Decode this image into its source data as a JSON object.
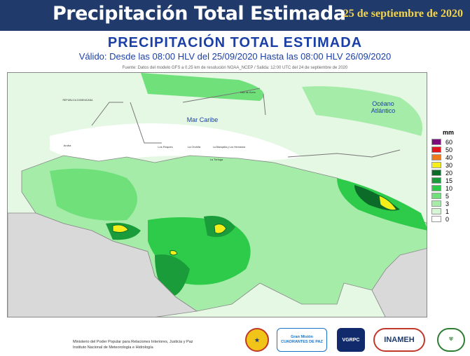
{
  "header": {
    "title": "Precipitación Total Estimada",
    "date": "25 de septiembre de 2020"
  },
  "map": {
    "heading": "PRECIPITACIÓN TOTAL ESTIMADA",
    "validity": "Válido: Desde las 08:00 HLV del 25/09/2020 Hasta las 08:00 HLV 26/09/2020",
    "source": "Fuente: Datos del modelo GFS a 0.25 km de resolución NOAA_NCEP / Salida: 12:00 UTC del 24 de septiembre de 2020",
    "labels": {
      "sea": "Mar Caribe",
      "ocean_1": "Océano",
      "ocean_2": "Atlántico",
      "republica_dominicana": "REPUBLICA DOMINICANA",
      "isla_aves": "Isla de Aves",
      "las_roques": "Los Roques",
      "la_orchila": "La Orchila",
      "margarita": "La Blanquilla y Los Hermanos",
      "la_tortuga": "La Tortuga",
      "aruba": "Aruba"
    }
  },
  "legend": {
    "unit": "mm",
    "items": [
      {
        "label": "60",
        "color": "#7b0d7b"
      },
      {
        "label": "50",
        "color": "#e3161b"
      },
      {
        "label": "40",
        "color": "#f07a1a"
      },
      {
        "label": "30",
        "color": "#f5ee1b"
      },
      {
        "label": "20",
        "color": "#0d6b2a"
      },
      {
        "label": "15",
        "color": "#1a9c3a"
      },
      {
        "label": "10",
        "color": "#2ecb4a"
      },
      {
        "label": "5",
        "color": "#6fe07a"
      },
      {
        "label": "3",
        "color": "#a5eca8"
      },
      {
        "label": "1",
        "color": "#d6f6d6"
      },
      {
        "label": "0",
        "color": "#ffffff"
      }
    ]
  },
  "footer": {
    "line1": "Ministerio del Poder Popular para Relaciones Interiores, Justicia y Paz",
    "line2": "Instituto Nacional de Meteorología e Hidrología"
  },
  "logos": {
    "gran_mision": "Gran Misión CUADRANTES DE PAZ",
    "vgrpc": "VGRPC",
    "inameh": "INAMEH"
  }
}
